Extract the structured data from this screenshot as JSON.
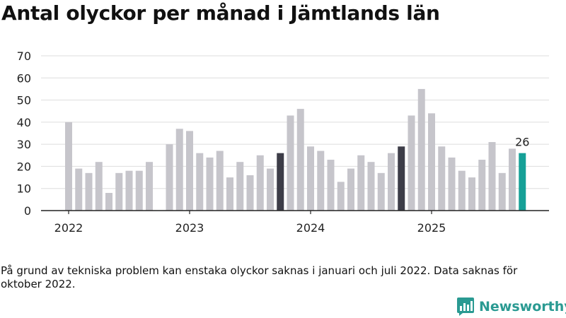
{
  "header": {
    "title": "Antal olyckor per månad i Jämtlands län"
  },
  "note": {
    "text": "På grund av tekniska problem kan enstaka olyckor saknas i januari och juli 2022. Data saknas för oktober 2022."
  },
  "brand": {
    "name": "Newsworthy",
    "color": "#2a9a92"
  },
  "colors": {
    "default": "#c6c5cb",
    "highlight": "#3d3d48",
    "latest": "#16a097",
    "grid": "#dddddd",
    "axis": "#222222"
  },
  "chart_data": {
    "type": "bar",
    "title": "Antal olyckor per månad i Jämtlands län",
    "xlabel": "",
    "ylabel": "",
    "ylim": [
      0,
      70
    ],
    "yticks": [
      0,
      10,
      20,
      30,
      40,
      50,
      60,
      70
    ],
    "grid": true,
    "year_ticks": [
      {
        "label": "2022",
        "category": "2022-01"
      },
      {
        "label": "2023",
        "category": "2023-01"
      },
      {
        "label": "2024",
        "category": "2024-01"
      },
      {
        "label": "2025",
        "category": "2025-01"
      }
    ],
    "categories": [
      "2022-01",
      "2022-02",
      "2022-03",
      "2022-04",
      "2022-05",
      "2022-06",
      "2022-07",
      "2022-08",
      "2022-09",
      "2022-10",
      "2022-11",
      "2022-12",
      "2023-01",
      "2023-02",
      "2023-03",
      "2023-04",
      "2023-05",
      "2023-06",
      "2023-07",
      "2023-08",
      "2023-09",
      "2023-10",
      "2023-11",
      "2023-12",
      "2024-01",
      "2024-02",
      "2024-03",
      "2024-04",
      "2024-05",
      "2024-06",
      "2024-07",
      "2024-08",
      "2024-09",
      "2024-10",
      "2024-11",
      "2024-12",
      "2025-01",
      "2025-02",
      "2025-03",
      "2025-04",
      "2025-05",
      "2025-06",
      "2025-07",
      "2025-08",
      "2025-09",
      "2025-10"
    ],
    "values": [
      40,
      19,
      17,
      22,
      8,
      17,
      18,
      18,
      22,
      null,
      30,
      37,
      36,
      26,
      24,
      27,
      15,
      22,
      16,
      25,
      19,
      26,
      43,
      46,
      29,
      27,
      23,
      13,
      19,
      25,
      22,
      17,
      26,
      29,
      43,
      55,
      44,
      29,
      24,
      18,
      15,
      23,
      31,
      17,
      28,
      26
    ],
    "highlighted": [
      "2023-10",
      "2024-10"
    ],
    "latest": "2025-10",
    "data_labels": [
      {
        "category": "2025-10",
        "text": "26"
      }
    ]
  }
}
